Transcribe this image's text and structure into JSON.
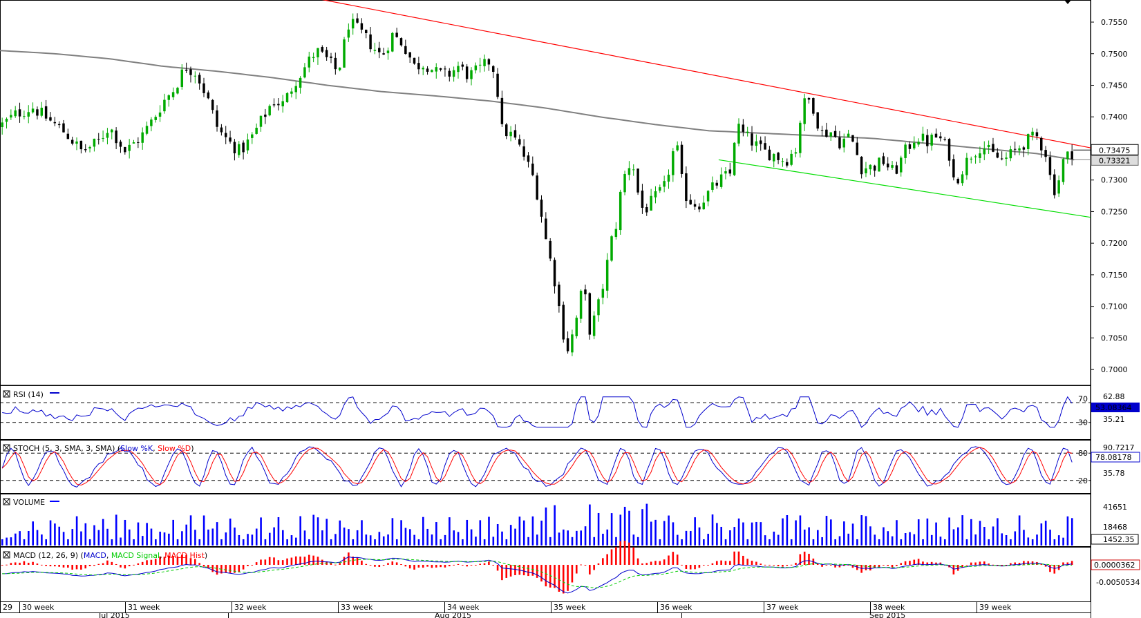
{
  "chart_data": {
    "type": "candlestick",
    "instrument_price_labels": {
      "last": "0.73475",
      "ma": "0.73321"
    },
    "price_axis": {
      "ticks": [
        "0.7550",
        "0.7500",
        "0.7450",
        "0.7400",
        "0.7350",
        "0.7300",
        "0.7250",
        "0.7200",
        "0.7150",
        "0.7100",
        "0.7050",
        "0.7000"
      ],
      "range": [
        0.6975,
        0.7585
      ]
    },
    "time_axis": {
      "week_labels": [
        "29",
        "30 week",
        "31 week",
        "32 week",
        "33 week",
        "34 week",
        "35 week",
        "36 week",
        "37 week",
        "38 week",
        "39 week"
      ],
      "month_labels": [
        "Jul 2015",
        "Aug 2015",
        "Sep 2015"
      ]
    },
    "trendlines": [
      {
        "name": "resistance",
        "color": "#ff0000",
        "from": [
          0.237,
          0.7605
        ],
        "to": [
          1.0,
          0.7351
        ]
      },
      {
        "name": "support",
        "color": "#00dd00",
        "from": [
          0.659,
          0.7332
        ],
        "to": [
          1.0,
          0.7241
        ]
      }
    ],
    "moving_average": {
      "color": "#808080",
      "points": [
        [
          0.0,
          0.7505
        ],
        [
          0.05,
          0.75
        ],
        [
          0.1,
          0.7492
        ],
        [
          0.15,
          0.748
        ],
        [
          0.2,
          0.7472
        ],
        [
          0.25,
          0.7462
        ],
        [
          0.3,
          0.745
        ],
        [
          0.35,
          0.744
        ],
        [
          0.4,
          0.7433
        ],
        [
          0.45,
          0.7425
        ],
        [
          0.5,
          0.7414
        ],
        [
          0.55,
          0.74
        ],
        [
          0.6,
          0.7388
        ],
        [
          0.65,
          0.7378
        ],
        [
          0.7,
          0.7374
        ],
        [
          0.75,
          0.737
        ],
        [
          0.8,
          0.7366
        ],
        [
          0.85,
          0.7358
        ],
        [
          0.9,
          0.735
        ],
        [
          0.95,
          0.7342
        ],
        [
          0.985,
          0.7332
        ]
      ]
    },
    "price_path": [
      [
        0.0,
        0.7385
      ],
      [
        0.015,
        0.7405
      ],
      [
        0.03,
        0.7415
      ],
      [
        0.045,
        0.7395
      ],
      [
        0.06,
        0.7375
      ],
      [
        0.075,
        0.7345
      ],
      [
        0.09,
        0.736
      ],
      [
        0.1,
        0.7385
      ],
      [
        0.115,
        0.7345
      ],
      [
        0.13,
        0.737
      ],
      [
        0.14,
        0.7395
      ],
      [
        0.15,
        0.7425
      ],
      [
        0.16,
        0.7445
      ],
      [
        0.17,
        0.748
      ],
      [
        0.18,
        0.747
      ],
      [
        0.19,
        0.743
      ],
      [
        0.2,
        0.738
      ],
      [
        0.21,
        0.736
      ],
      [
        0.22,
        0.7345
      ],
      [
        0.23,
        0.7365
      ],
      [
        0.24,
        0.7395
      ],
      [
        0.25,
        0.7425
      ],
      [
        0.26,
        0.742
      ],
      [
        0.27,
        0.7455
      ],
      [
        0.28,
        0.748
      ],
      [
        0.29,
        0.7505
      ],
      [
        0.3,
        0.749
      ],
      [
        0.31,
        0.747
      ],
      [
        0.32,
        0.755
      ],
      [
        0.33,
        0.7535
      ],
      [
        0.34,
        0.7515
      ],
      [
        0.35,
        0.7495
      ],
      [
        0.36,
        0.753
      ],
      [
        0.37,
        0.7515
      ],
      [
        0.38,
        0.748
      ],
      [
        0.39,
        0.7485
      ],
      [
        0.4,
        0.747
      ],
      [
        0.41,
        0.7465
      ],
      [
        0.42,
        0.748
      ],
      [
        0.43,
        0.7465
      ],
      [
        0.44,
        0.7475
      ],
      [
        0.45,
        0.749
      ],
      [
        0.455,
        0.746
      ],
      [
        0.46,
        0.738
      ],
      [
        0.47,
        0.737
      ],
      [
        0.48,
        0.734
      ],
      [
        0.49,
        0.73
      ],
      [
        0.495,
        0.726
      ],
      [
        0.5,
        0.721
      ],
      [
        0.505,
        0.717
      ],
      [
        0.51,
        0.713
      ],
      [
        0.515,
        0.707
      ],
      [
        0.52,
        0.703
      ],
      [
        0.525,
        0.7055
      ],
      [
        0.53,
        0.709
      ],
      [
        0.535,
        0.714
      ],
      [
        0.54,
        0.706
      ],
      [
        0.545,
        0.708
      ],
      [
        0.55,
        0.711
      ],
      [
        0.555,
        0.715
      ],
      [
        0.56,
        0.72
      ],
      [
        0.565,
        0.723
      ],
      [
        0.57,
        0.729
      ],
      [
        0.575,
        0.732
      ],
      [
        0.58,
        0.733
      ],
      [
        0.585,
        0.728
      ],
      [
        0.59,
        0.725
      ],
      [
        0.6,
        0.727
      ],
      [
        0.61,
        0.729
      ],
      [
        0.615,
        0.733
      ],
      [
        0.62,
        0.736
      ],
      [
        0.625,
        0.73
      ],
      [
        0.63,
        0.727
      ],
      [
        0.64,
        0.726
      ],
      [
        0.65,
        0.728
      ],
      [
        0.66,
        0.73
      ],
      [
        0.67,
        0.731
      ],
      [
        0.675,
        0.739
      ],
      [
        0.68,
        0.7375
      ],
      [
        0.69,
        0.736
      ],
      [
        0.7,
        0.7345
      ],
      [
        0.71,
        0.734
      ],
      [
        0.72,
        0.733
      ],
      [
        0.73,
        0.735
      ],
      [
        0.735,
        0.741
      ],
      [
        0.74,
        0.743
      ],
      [
        0.745,
        0.742
      ],
      [
        0.75,
        0.739
      ],
      [
        0.755,
        0.737
      ],
      [
        0.76,
        0.738
      ],
      [
        0.77,
        0.736
      ],
      [
        0.78,
        0.737
      ],
      [
        0.79,
        0.732
      ],
      [
        0.8,
        0.732
      ],
      [
        0.81,
        0.733
      ],
      [
        0.82,
        0.731
      ],
      [
        0.83,
        0.7345
      ],
      [
        0.84,
        0.737
      ],
      [
        0.85,
        0.736
      ],
      [
        0.86,
        0.737
      ],
      [
        0.87,
        0.7345
      ],
      [
        0.875,
        0.7295
      ],
      [
        0.88,
        0.731
      ],
      [
        0.89,
        0.734
      ],
      [
        0.9,
        0.7355
      ],
      [
        0.91,
        0.734
      ],
      [
        0.92,
        0.733
      ],
      [
        0.93,
        0.7345
      ],
      [
        0.94,
        0.736
      ],
      [
        0.95,
        0.737
      ],
      [
        0.955,
        0.7355
      ],
      [
        0.96,
        0.734
      ],
      [
        0.965,
        0.728
      ],
      [
        0.97,
        0.7295
      ],
      [
        0.975,
        0.733
      ],
      [
        0.98,
        0.734
      ],
      [
        0.985,
        0.7347
      ]
    ],
    "indicators": {
      "rsi": {
        "label": "RSI (14)",
        "levels": [
          "70",
          "30"
        ],
        "value_labels": [
          "62.88",
          "53.08364",
          "35.21"
        ]
      },
      "stoch": {
        "label": "STOCH (5, 3, SMA, 3, SMA)",
        "series": [
          "Slow %K",
          "Slow %D"
        ],
        "levels": [
          "80",
          "20"
        ],
        "value_labels": [
          "90.7217",
          "78.08178",
          "35.78"
        ]
      },
      "volume": {
        "label": "VOLUME",
        "value_labels": [
          "41651",
          "18468",
          "1452.35"
        ]
      },
      "macd": {
        "label": "MACD (12, 26, 9)",
        "series": [
          "MACD",
          "MACD Signal",
          "MACD Hist"
        ],
        "value_labels": [
          "0.0000362",
          "-0.0050534"
        ]
      }
    },
    "colors": {
      "up": "#00aa00",
      "down": "#000000",
      "rsi": "#0000cc",
      "stoch_k": "#0000cc",
      "stoch_d": "#ff0000",
      "volume": "#0000ff",
      "macd": "#0000cc",
      "signal": "#00cc00",
      "hist": "#ff0000",
      "highlight_box": "#0000cc"
    }
  }
}
